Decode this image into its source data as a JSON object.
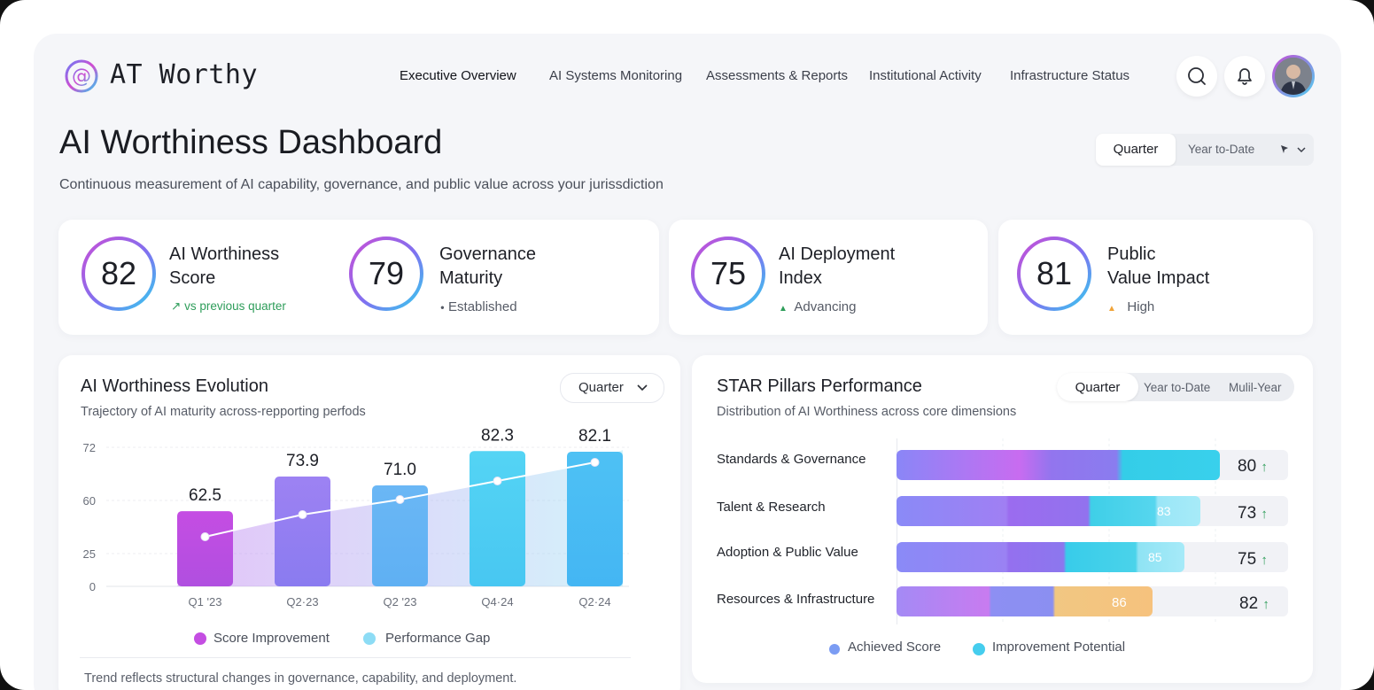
{
  "header": {
    "brand": "AT Worthy",
    "nav": [
      {
        "label": "Executive Overview",
        "active": true
      },
      {
        "label": "AI Systems Monitoring",
        "active": false
      },
      {
        "label": "Assessments & Reports",
        "active": false
      },
      {
        "label": "Institutional Activity",
        "active": false
      },
      {
        "label": "Infrastructure Status",
        "active": false
      }
    ],
    "icons": [
      "search-icon",
      "bell-icon"
    ]
  },
  "page": {
    "title": "AI Worthiness Dashboard",
    "subtitle": "Continuous measurement of AI capability, governance, and public value across your jurissdiction",
    "period_toggle": {
      "options": [
        "Quarter",
        "Year to-Date"
      ],
      "active": "Quarter",
      "extra_icon": "filter-icon"
    }
  },
  "kpis": [
    {
      "value": "82",
      "label_line1": "AI Worthiness",
      "label_line2": "Score",
      "sub": "vs previous quarter",
      "sub_icon": "↗",
      "sub_color": "#2e9d5a"
    },
    {
      "value": "79",
      "label_line1": "Governance",
      "label_line2": "Maturity",
      "sub": "Established",
      "sub_icon": "●",
      "sub_color": "#565b66"
    },
    {
      "value": "75",
      "label_line1": "AI Deployment",
      "label_line2": "Index",
      "sub": "Advancing",
      "sub_icon": "▲",
      "sub_color": "#2e9d5a"
    },
    {
      "value": "81",
      "label_line1": "Public",
      "label_line2": "Value Impact",
      "sub": "High",
      "sub_icon": "▲",
      "sub_color": "#f0a43a"
    }
  ],
  "evolution": {
    "title": "AI Worthiness Evolution",
    "subtitle": "Trajectory of AI maturity across-repporting perfods",
    "dropdown": "Quarter",
    "footer": "Trend reflects structural changes in governance, capability, and deployment.",
    "legend": [
      "Score Improvement",
      "Performance Gap"
    ]
  },
  "pillars": {
    "title": "STAR Pillars Performance",
    "subtitle": "Distribution of AI Worthiness across core dimensions",
    "toggle": {
      "options": [
        "Quarter",
        "Year to-Date",
        "Mulil-Year"
      ],
      "active": "Quarter"
    },
    "legend": [
      "Achieved Score",
      "Improvement Potential"
    ],
    "rows": [
      {
        "name": "Standards & Governance",
        "score": "80",
        "bar_label": "",
        "fill": 0.8,
        "arrow": "↑"
      },
      {
        "name": "Talent & Research",
        "score": "73",
        "bar_label": "83",
        "fill": 0.73,
        "arrow": "↑"
      },
      {
        "name": "Adoption & Public Value",
        "score": "75",
        "bar_label": "85",
        "fill": 0.75,
        "arrow": "↑"
      },
      {
        "name": "Resources & Infrastructure",
        "score": "82",
        "bar_label": "86",
        "fill": 0.82,
        "arrow": "↑"
      }
    ]
  },
  "chart_data": {
    "type": "bar",
    "categories": [
      "Q1 '23",
      "Q2·23",
      "Q2 '23",
      "Q4·24",
      "Q2·24"
    ],
    "series": [
      {
        "name": "Score Improvement",
        "values": [
          62.5,
          73.9,
          71.0,
          82.3,
          82.1
        ]
      }
    ],
    "data_labels": [
      "62.5",
      "73.9",
      "71.0",
      "82.3",
      "82.1"
    ],
    "y_ticks": [
      "72",
      "60",
      "25",
      "0"
    ],
    "trend_line": [
      62.5,
      73.9,
      71.0,
      82.3,
      82.1
    ],
    "grid": true,
    "legend": "bottom"
  }
}
